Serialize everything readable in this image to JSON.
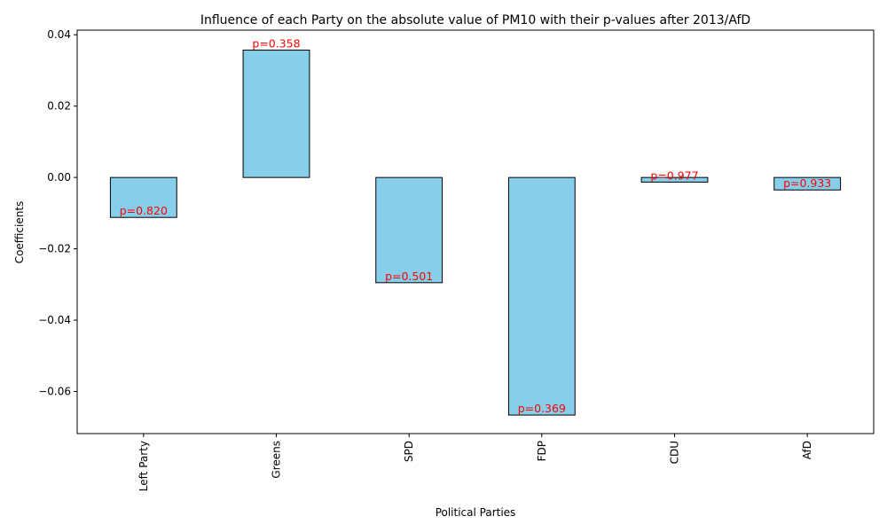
{
  "chart_data": {
    "type": "bar",
    "title": "Influence of each Party on the absolute value of PM10 with their p-values after 2013/AfD",
    "xlabel": "Political Parties",
    "ylabel": "Coefficients",
    "categories": [
      "Left Party",
      "Greens",
      "SPD",
      "FDP",
      "CDU",
      "AfD"
    ],
    "values": [
      -0.0112,
      0.0357,
      -0.0295,
      -0.0666,
      -0.0013,
      -0.0035
    ],
    "annotations": [
      "p=0.820",
      "p=0.358",
      "p=0.501",
      "p=0.369",
      "p=0.977",
      "p=0.933"
    ],
    "yticks": [
      -0.06,
      -0.04,
      -0.02,
      0.0,
      0.02,
      0.04
    ],
    "ytick_labels": [
      "−0.06",
      "−0.04",
      "−0.02",
      "0.00",
      "0.02",
      "0.04"
    ],
    "ylim": [
      -0.0718,
      0.0413
    ],
    "grid": false,
    "colors": {
      "bar_fill": "#87ceeb",
      "bar_edge": "#000000",
      "annotation": "#ff0000"
    }
  }
}
